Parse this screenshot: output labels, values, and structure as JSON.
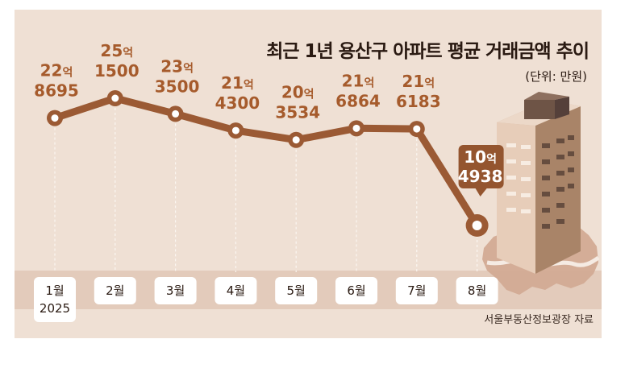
{
  "header": {
    "title": "최근 1년 용산구 아파트 평균 거래금액 추이",
    "unit": "(단위: 만원)"
  },
  "footer": {
    "source": "서울부동산정보광장 자료"
  },
  "colors": {
    "background": "#efe0d4",
    "band": "#e3cbbb",
    "line": "#9b5a34",
    "label": "#a65b2c",
    "highlight_box": "#94552f",
    "building": "#d8b9a2",
    "map": "#d2aa93"
  },
  "chart_data": {
    "type": "line",
    "title": "최근 1년 용산구 아파트 평균 거래금액 추이",
    "ylabel": "(단위: 만원)",
    "categories": [
      "1월\n2025",
      "2월",
      "3월",
      "4월",
      "5월",
      "6월",
      "7월",
      "8월"
    ],
    "values": [
      228695,
      251500,
      233500,
      214300,
      203534,
      216864,
      216183,
      104938
    ],
    "value_labels": [
      {
        "eok": "22",
        "eok_unit": "억",
        "man": "8695"
      },
      {
        "eok": "25",
        "eok_unit": "억",
        "man": "1500"
      },
      {
        "eok": "23",
        "eok_unit": "억",
        "man": "3500"
      },
      {
        "eok": "21",
        "eok_unit": "억",
        "man": "4300"
      },
      {
        "eok": "20",
        "eok_unit": "억",
        "man": "3534"
      },
      {
        "eok": "21",
        "eok_unit": "억",
        "man": "6864"
      },
      {
        "eok": "21",
        "eok_unit": "억",
        "man": "6183"
      },
      {
        "eok": "10",
        "eok_unit": "억",
        "man": "4938"
      }
    ],
    "highlight_index": 7,
    "ylim": [
      80000,
      270000
    ],
    "grid": false,
    "legend": "none"
  }
}
